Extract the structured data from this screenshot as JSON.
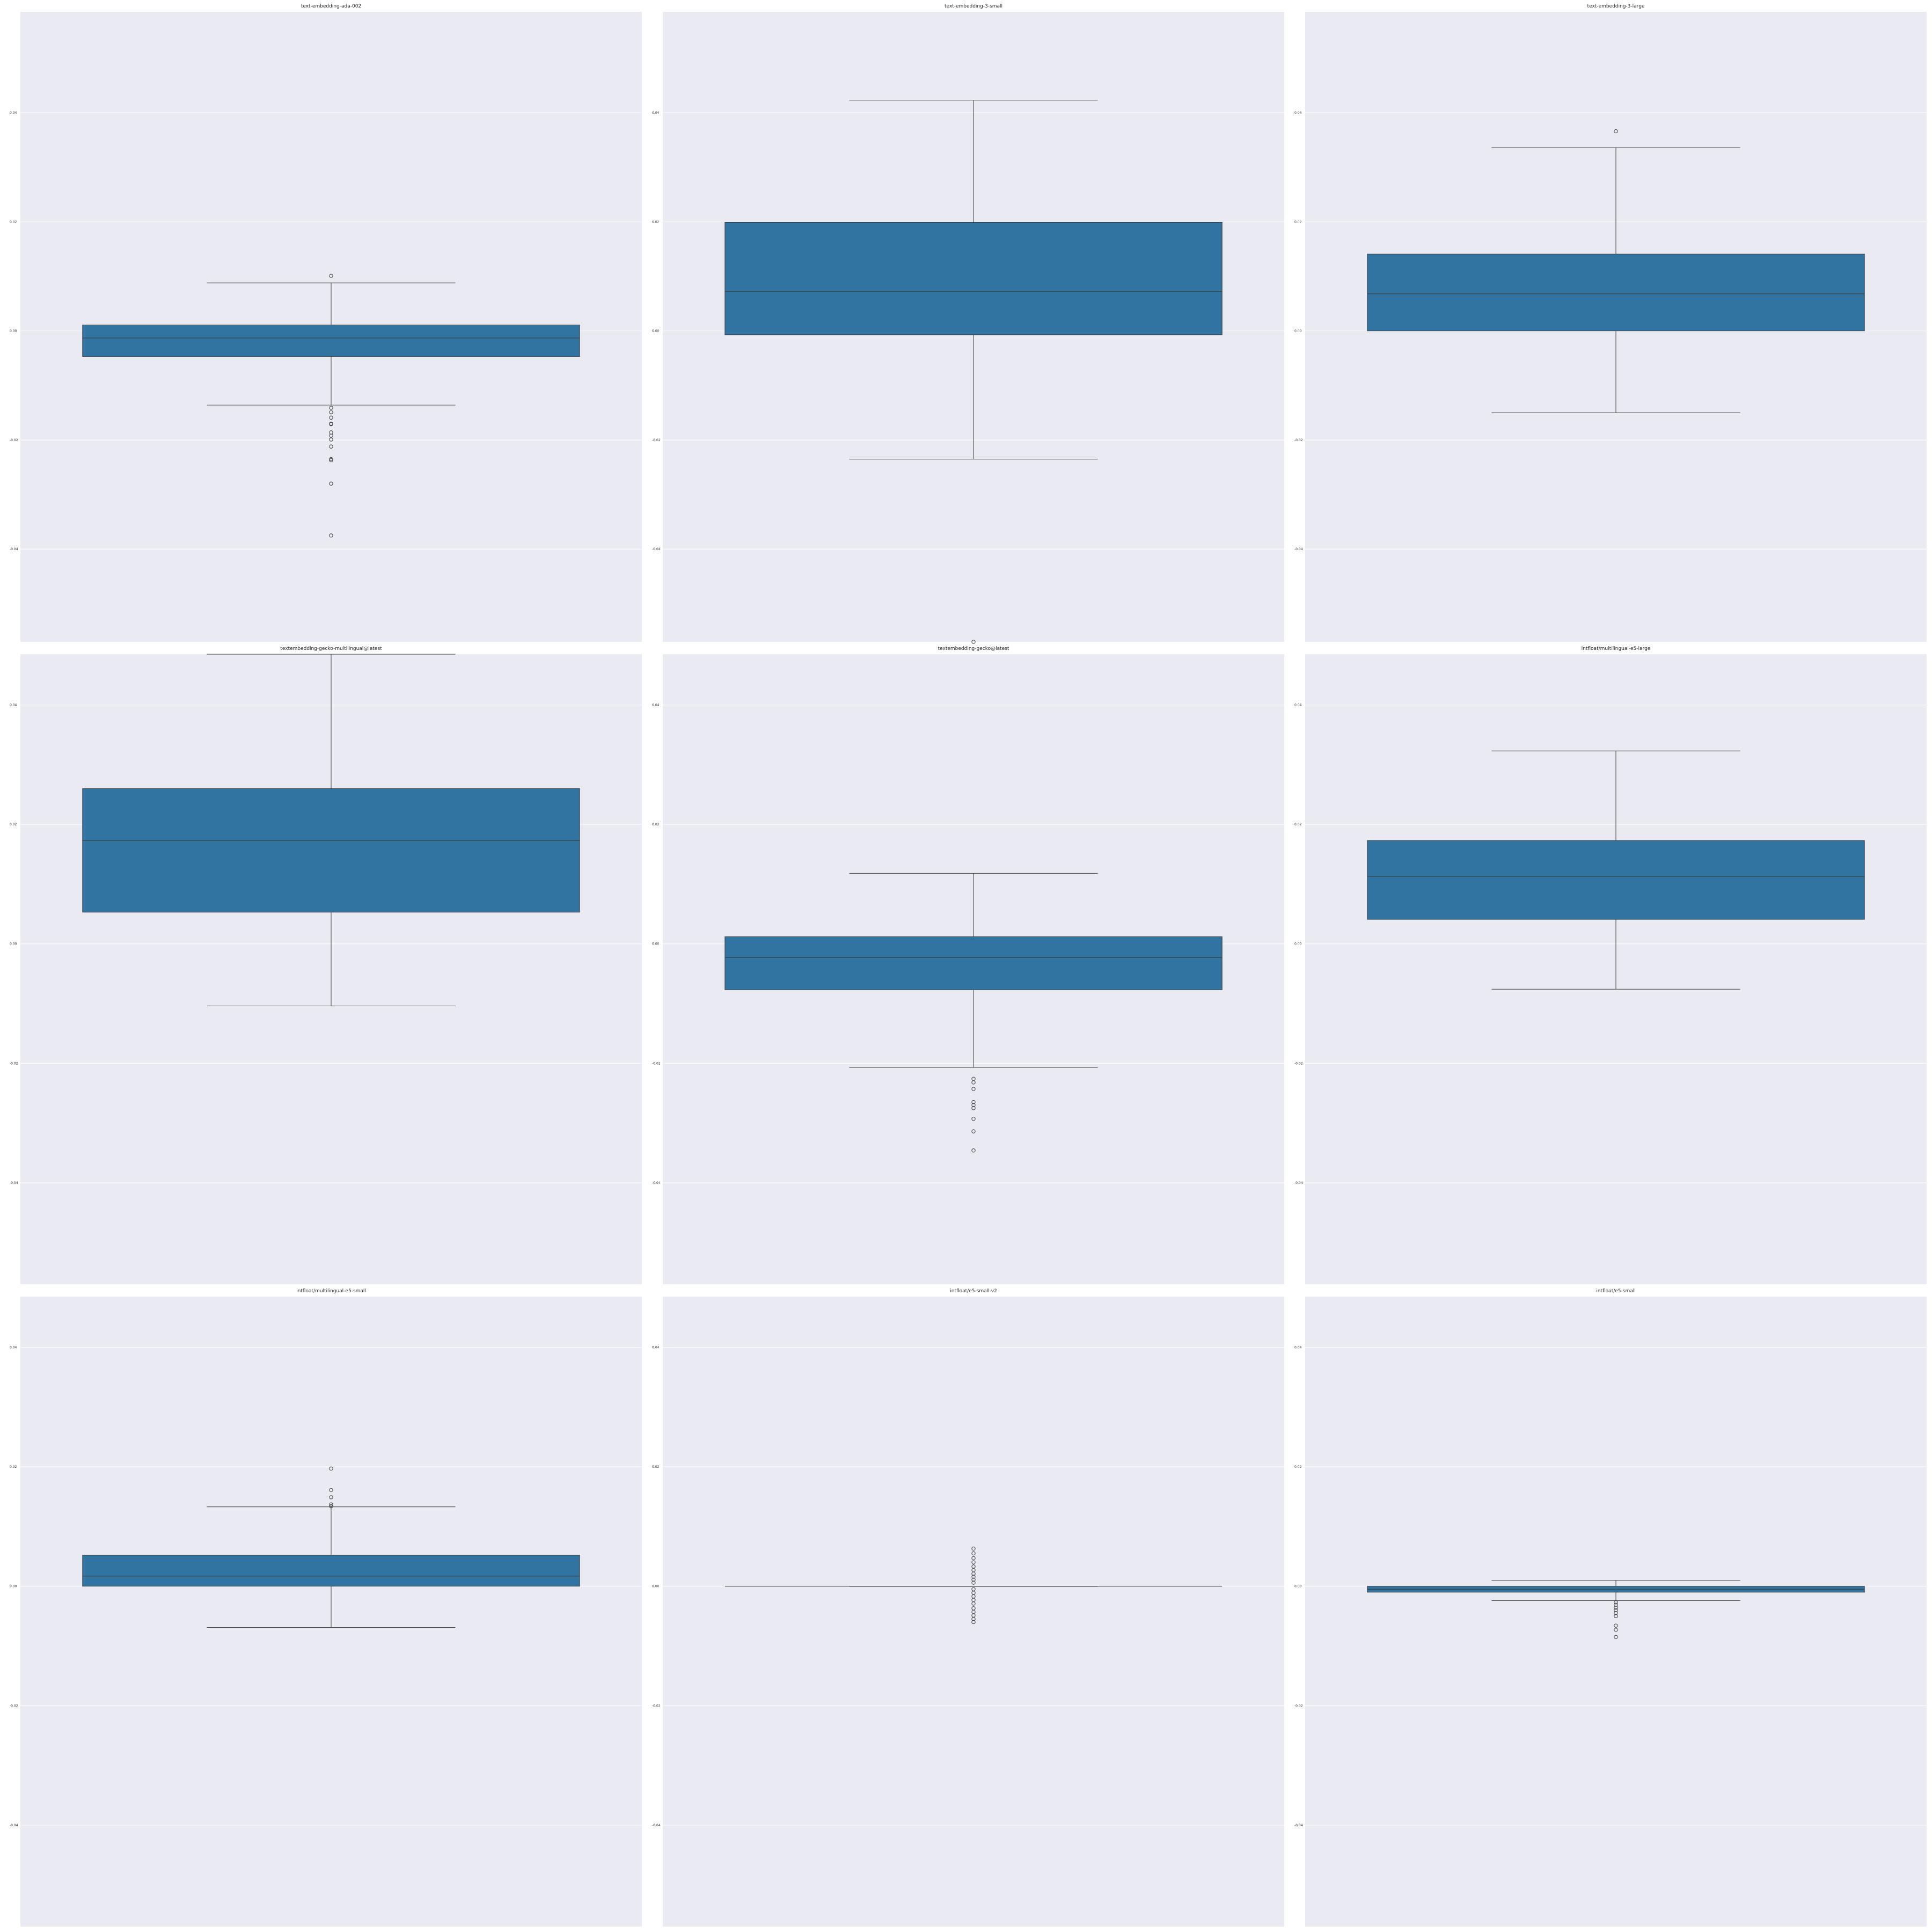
{
  "colors": {
    "box": "#3274a1",
    "edge": "#3d3d3d",
    "panel": "#eaeaf2",
    "grid": "#ffffff"
  },
  "chart_data": [
    {
      "type": "box",
      "title": "text-embedding-ada-002",
      "ylim": [
        -0.057,
        0.0585
      ],
      "yticks": [
        "0.04",
        "0.02",
        "0.00",
        "-0.02",
        "-0.04"
      ],
      "q1": -0.0047,
      "median": -0.0013,
      "q3": 0.0011,
      "whisker_low": -0.0136,
      "whisker_high": 0.0088,
      "outliers": [
        0.0101,
        -0.0141,
        -0.0149,
        -0.0159,
        -0.017,
        -0.0171,
        -0.0186,
        -0.0192,
        -0.0199,
        -0.0212,
        -0.0235,
        -0.0237,
        -0.028,
        -0.0375
      ]
    },
    {
      "type": "box",
      "title": "text-embedding-3-small",
      "ylim": [
        -0.057,
        0.0585
      ],
      "yticks": [
        "0.04",
        "0.02",
        "0.00",
        "-0.02",
        "-0.04"
      ],
      "q1": -0.0007,
      "median": 0.0072,
      "q3": 0.0199,
      "whisker_low": -0.0235,
      "whisker_high": 0.0423,
      "outliers": [
        -0.057
      ]
    },
    {
      "type": "box",
      "title": "text-embedding-3-large",
      "ylim": [
        -0.057,
        0.0585
      ],
      "yticks": [
        "0.04",
        "0.02",
        "0.00",
        "-0.02",
        "-0.04"
      ],
      "q1": 0.0,
      "median": 0.0068,
      "q3": 0.0141,
      "whisker_low": -0.015,
      "whisker_high": 0.0336,
      "outliers": [
        0.0366
      ]
    },
    {
      "type": "box",
      "title": "textembedding-gecko-multilingual@latest",
      "ylim": [
        -0.057,
        0.0485
      ],
      "yticks": [
        "0.04",
        "0.02",
        "0.00",
        "-0.02",
        "-0.04"
      ],
      "q1": 0.0053,
      "median": 0.0173,
      "q3": 0.026,
      "whisker_low": -0.0104,
      "whisker_high": 0.0485,
      "outliers": []
    },
    {
      "type": "box",
      "title": "textembedding-gecko@latest",
      "ylim": [
        -0.057,
        0.0485
      ],
      "yticks": [
        "0.04",
        "0.02",
        "0.00",
        "-0.02",
        "-0.04"
      ],
      "q1": -0.0077,
      "median": -0.0023,
      "q3": 0.0012,
      "whisker_low": -0.0207,
      "whisker_high": 0.0118,
      "outliers": [
        -0.0226,
        -0.0232,
        -0.0243,
        -0.0265,
        -0.027,
        -0.0275,
        -0.0293,
        -0.0314,
        -0.0346
      ]
    },
    {
      "type": "box",
      "title": "intfloat/multilingual-e5-large",
      "ylim": [
        -0.057,
        0.0485
      ],
      "yticks": [
        "0.04",
        "0.02",
        "0.00",
        "-0.02",
        "-0.04"
      ],
      "q1": 0.0041,
      "median": 0.0113,
      "q3": 0.0173,
      "whisker_low": -0.0076,
      "whisker_high": 0.0323,
      "outliers": []
    },
    {
      "type": "box",
      "title": "intfloat/multilingual-e5-small",
      "ylim": [
        -0.057,
        0.0485
      ],
      "yticks": [
        "0.04",
        "0.02",
        "0.00",
        "-0.02",
        "-0.04"
      ],
      "q1": 0.0,
      "median": 0.0017,
      "q3": 0.0052,
      "whisker_low": -0.0069,
      "whisker_high": 0.0133,
      "outliers": [
        0.0134,
        0.0137,
        0.0149,
        0.0161,
        0.0197
      ]
    },
    {
      "type": "box",
      "title": "intfloat/e5-small-v2",
      "ylim": [
        -0.057,
        0.0485
      ],
      "yticks": [
        "0.04",
        "0.02",
        "0.00",
        "-0.02",
        "-0.04"
      ],
      "q1": 0.0,
      "median": 0.0,
      "q3": 0.0,
      "whisker_low": 0.0,
      "whisker_high": 0.0,
      "outliers": [
        0.0063,
        0.0055,
        0.0047,
        0.004,
        0.0033,
        0.0027,
        0.0021,
        0.0016,
        0.0011,
        0.0006,
        -0.0005,
        -0.0011,
        -0.0017,
        -0.0023,
        -0.0029,
        -0.0037,
        -0.0043,
        -0.0049,
        -0.0055,
        -0.006
      ]
    },
    {
      "type": "box",
      "title": "intfloat/e5-small",
      "ylim": [
        -0.057,
        0.0485
      ],
      "yticks": [
        "0.04",
        "0.02",
        "0.00",
        "-0.02",
        "-0.04"
      ],
      "q1": -0.001,
      "median": -0.0005,
      "q3": 0.0,
      "whisker_low": -0.0024,
      "whisker_high": 0.001,
      "outliers": [
        -0.0027,
        -0.0031,
        -0.0036,
        -0.004,
        -0.0045,
        -0.005,
        -0.0066,
        -0.0073,
        -0.0085
      ]
    }
  ]
}
